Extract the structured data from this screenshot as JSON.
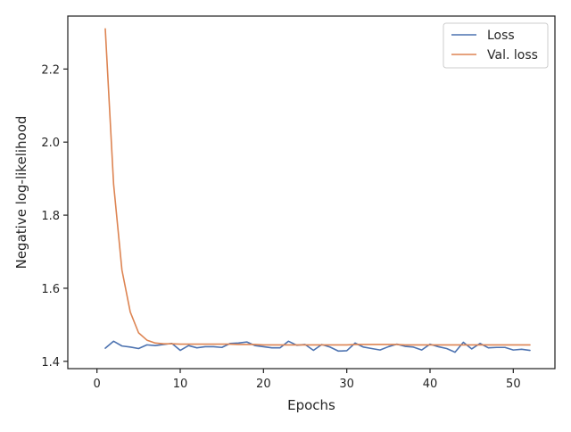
{
  "chart_data": {
    "type": "line",
    "xlabel": "Epochs",
    "ylabel": "Negative log-likelihood",
    "xlim": [
      -3.5,
      55
    ],
    "ylim": [
      1.38,
      2.345
    ],
    "x_ticks": [
      0,
      10,
      20,
      30,
      40,
      50
    ],
    "y_ticks": [
      1.4,
      1.6,
      1.8,
      2.0,
      2.2
    ],
    "grid": false,
    "legend_position": "top-right",
    "x": [
      1,
      2,
      3,
      4,
      5,
      6,
      7,
      8,
      9,
      10,
      11,
      12,
      13,
      14,
      15,
      16,
      17,
      18,
      19,
      20,
      21,
      22,
      23,
      24,
      25,
      26,
      27,
      28,
      29,
      30,
      31,
      32,
      33,
      34,
      35,
      36,
      37,
      38,
      39,
      40,
      41,
      42,
      43,
      44,
      45,
      46,
      47,
      48,
      49,
      50,
      51,
      52
    ],
    "series": [
      {
        "name": "Loss",
        "color": "#4c72b0",
        "values": [
          1.436,
          1.455,
          1.442,
          1.439,
          1.435,
          1.445,
          1.443,
          1.446,
          1.449,
          1.43,
          1.443,
          1.437,
          1.44,
          1.44,
          1.438,
          1.449,
          1.45,
          1.453,
          1.443,
          1.44,
          1.437,
          1.437,
          1.455,
          1.444,
          1.446,
          1.43,
          1.446,
          1.439,
          1.428,
          1.429,
          1.45,
          1.439,
          1.435,
          1.431,
          1.44,
          1.447,
          1.441,
          1.439,
          1.431,
          1.447,
          1.44,
          1.435,
          1.425,
          1.452,
          1.434,
          1.449,
          1.437,
          1.438,
          1.438,
          1.431,
          1.433,
          1.43
        ]
      },
      {
        "name": "Val. loss",
        "color": "#dd8452",
        "values": [
          2.31,
          1.885,
          1.65,
          1.535,
          1.478,
          1.458,
          1.45,
          1.448,
          1.448,
          1.447,
          1.447,
          1.447,
          1.447,
          1.447,
          1.447,
          1.447,
          1.446,
          1.446,
          1.446,
          1.445,
          1.445,
          1.445,
          1.445,
          1.445,
          1.445,
          1.445,
          1.445,
          1.445,
          1.445,
          1.445,
          1.446,
          1.446,
          1.446,
          1.446,
          1.446,
          1.446,
          1.445,
          1.445,
          1.445,
          1.445,
          1.445,
          1.445,
          1.445,
          1.445,
          1.445,
          1.445,
          1.445,
          1.445,
          1.445,
          1.445,
          1.445,
          1.445
        ]
      }
    ]
  }
}
